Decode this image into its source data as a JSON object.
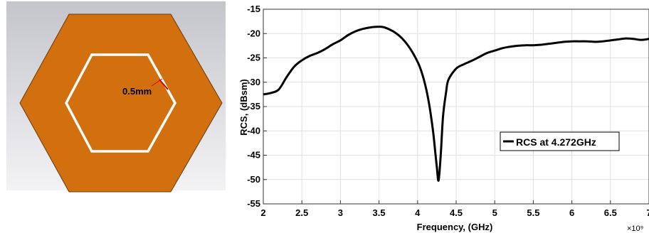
{
  "colors": {
    "hexagon_fill": "#d2700f",
    "hexagon_edge": "#6b3a09",
    "slot": "#ffffff",
    "gap_marker": "#e00000",
    "panel_background_top": "#c4c5cb",
    "panel_background_bottom": "#f3f3f5",
    "curve": "#000000",
    "grid": "#e1e1e1"
  },
  "unit_cell": {
    "dimension_label": "0.5mm"
  },
  "chart_data": {
    "type": "line",
    "xlabel": "Frequency, (GHz)",
    "ylabel": "RCS, (dBsm)",
    "x_multiplier": "×10⁹",
    "xlim": [
      2,
      7
    ],
    "ylim": [
      -55,
      -15
    ],
    "x_ticks": [
      2,
      2.5,
      3,
      3.5,
      4,
      4.5,
      5,
      5.5,
      6,
      6.5,
      7
    ],
    "x_tick_labels": [
      "2",
      "2.5",
      "3",
      "3.5",
      "4",
      "4.5",
      "5",
      "5.5",
      "6",
      "6.5",
      "7"
    ],
    "y_ticks": [
      -15,
      -20,
      -25,
      -30,
      -35,
      -40,
      -45,
      -50,
      -55
    ],
    "y_tick_labels": [
      "-15",
      "-20",
      "-25",
      "-30",
      "-35",
      "-40",
      "-45",
      "-50",
      "-55"
    ],
    "grid": true,
    "legend_position": "right",
    "series": [
      {
        "name": "RCS at 4.272GHz",
        "x": [
          2.0,
          2.1,
          2.2,
          2.3,
          2.4,
          2.5,
          2.6,
          2.7,
          2.8,
          2.9,
          3.0,
          3.1,
          3.2,
          3.3,
          3.4,
          3.5,
          3.55,
          3.6,
          3.7,
          3.8,
          3.9,
          4.0,
          4.05,
          4.1,
          4.15,
          4.2,
          4.23,
          4.25,
          4.272,
          4.3,
          4.33,
          4.37,
          4.4,
          4.5,
          4.6,
          4.7,
          4.8,
          4.9,
          5.0,
          5.1,
          5.2,
          5.3,
          5.4,
          5.5,
          5.6,
          5.7,
          5.8,
          5.9,
          6.0,
          6.1,
          6.2,
          6.3,
          6.4,
          6.5,
          6.6,
          6.7,
          6.8,
          6.9,
          7.0
        ],
        "y": [
          -32.5,
          -32.2,
          -31.5,
          -29.0,
          -26.8,
          -25.5,
          -24.6,
          -24.0,
          -23.2,
          -22.2,
          -21.4,
          -20.3,
          -19.5,
          -19.0,
          -18.7,
          -18.6,
          -18.65,
          -18.9,
          -19.7,
          -21.0,
          -23.0,
          -25.8,
          -27.8,
          -30.6,
          -34.5,
          -40.0,
          -44.5,
          -47.5,
          -50.2,
          -45.0,
          -37.0,
          -32.0,
          -29.5,
          -27.2,
          -26.3,
          -25.6,
          -24.8,
          -24.0,
          -23.5,
          -23.0,
          -22.7,
          -22.5,
          -22.4,
          -22.4,
          -22.3,
          -22.1,
          -21.9,
          -21.7,
          -21.6,
          -21.6,
          -21.6,
          -21.7,
          -21.6,
          -21.4,
          -21.2,
          -21.0,
          -21.1,
          -21.3,
          -21.1
        ]
      }
    ]
  }
}
